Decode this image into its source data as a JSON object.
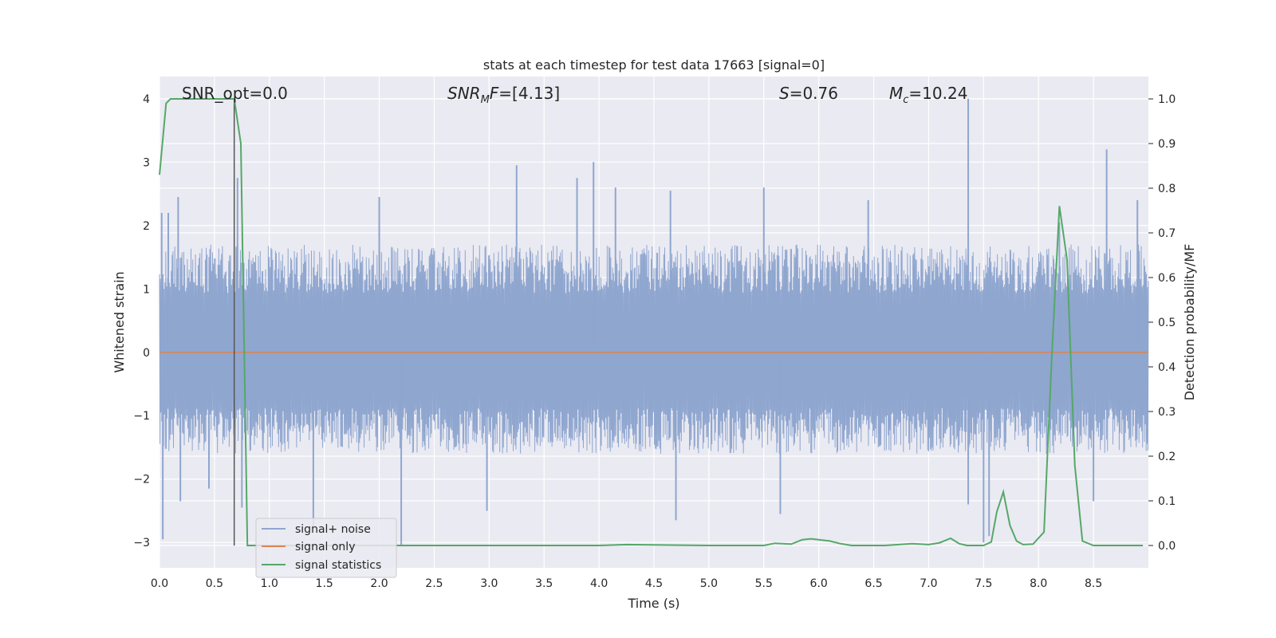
{
  "chart_data": {
    "type": "line",
    "title": "stats at each timestep for test data 17663 [signal=0]",
    "xlabel": "Time (s)",
    "ylabel": "Whitened strain",
    "ylabel_right": "Detection probability/MF",
    "xlim": [
      0,
      9.0
    ],
    "ylim": [
      -3.4,
      4.35
    ],
    "ylim_right": [
      -0.05,
      1.05
    ],
    "x_ticks": [
      "0.0",
      "0.5",
      "1.0",
      "1.5",
      "2.0",
      "2.5",
      "3.0",
      "3.5",
      "4.0",
      "4.5",
      "5.0",
      "5.5",
      "6.0",
      "6.5",
      "7.0",
      "7.5",
      "8.0",
      "8.5"
    ],
    "x_tick_values": [
      0,
      0.5,
      1,
      1.5,
      2,
      2.5,
      3,
      3.5,
      4,
      4.5,
      5,
      5.5,
      6,
      6.5,
      7,
      7.5,
      8,
      8.5
    ],
    "y_ticks": [
      "4",
      "3",
      "2",
      "1",
      "0",
      "−1",
      "−2",
      "−3"
    ],
    "y_tick_values": [
      4,
      3,
      2,
      1,
      0,
      -1,
      -2,
      -3
    ],
    "y_right_ticks": [
      "1.0",
      "0.9",
      "0.8",
      "0.7",
      "0.6",
      "0.5",
      "0.4",
      "0.3",
      "0.2",
      "0.1",
      "0.0"
    ],
    "y_right_tick_values": [
      1.0,
      0.9,
      0.8,
      0.7,
      0.6,
      0.5,
      0.4,
      0.3,
      0.2,
      0.1,
      0.0
    ],
    "annotations": {
      "snr_opt": "SNR_opt=0.0",
      "snr_mf_main": "SNR",
      "snr_mf_sub": "M",
      "snr_mf_italic_tail": "F",
      "snr_mf_value": "=[4.13]",
      "s_label": "S",
      "s_value": "=0.76",
      "mc_label": "M",
      "mc_sub": "c",
      "mc_value": "=10.24"
    },
    "marker_line": {
      "x": 0.68,
      "y": [
        -3.05,
        4.0
      ]
    },
    "legend": {
      "placement": "lower-left",
      "entries": [
        "signal+ noise",
        "signal only",
        "signal statistics"
      ]
    },
    "series": [
      {
        "name": "signal+ noise",
        "color": "#8fa6cf",
        "axis": "left",
        "kind": "noise",
        "envelope": {
          "typical_max": 1.7,
          "typical_min": -1.6
        },
        "peaks": [
          {
            "x": 0.02,
            "y": 2.2
          },
          {
            "x": 0.03,
            "y": -2.95
          },
          {
            "x": 0.08,
            "y": 2.2
          },
          {
            "x": 0.17,
            "y": 2.45
          },
          {
            "x": 0.19,
            "y": -2.35
          },
          {
            "x": 0.45,
            "y": -2.15
          },
          {
            "x": 0.71,
            "y": 2.75
          },
          {
            "x": 0.75,
            "y": -2.45
          },
          {
            "x": 1.4,
            "y": -2.75
          },
          {
            "x": 2.0,
            "y": 2.45
          },
          {
            "x": 2.2,
            "y": -3.05
          },
          {
            "x": 3.25,
            "y": 2.95
          },
          {
            "x": 2.98,
            "y": -2.5
          },
          {
            "x": 3.8,
            "y": 2.75
          },
          {
            "x": 3.95,
            "y": 3.0
          },
          {
            "x": 4.15,
            "y": 2.6
          },
          {
            "x": 4.65,
            "y": 2.55
          },
          {
            "x": 4.7,
            "y": -2.65
          },
          {
            "x": 5.5,
            "y": 2.6
          },
          {
            "x": 5.65,
            "y": -2.55
          },
          {
            "x": 6.45,
            "y": 2.4
          },
          {
            "x": 7.36,
            "y": 4.0
          },
          {
            "x": 7.36,
            "y": -2.4
          },
          {
            "x": 7.5,
            "y": -3.0
          },
          {
            "x": 7.55,
            "y": -2.9
          },
          {
            "x": 8.19,
            "y": 2.05
          },
          {
            "x": 8.5,
            "y": -2.35
          },
          {
            "x": 8.62,
            "y": 3.2
          },
          {
            "x": 8.9,
            "y": 2.4
          }
        ]
      },
      {
        "name": "signal only",
        "color": "#dd8452",
        "axis": "left",
        "x": [
          0,
          9.0
        ],
        "y": [
          0,
          0
        ]
      },
      {
        "name": "signal statistics",
        "color": "#55a868",
        "axis": "right",
        "x": [
          0.0,
          0.06,
          0.1,
          0.2,
          0.4,
          0.6,
          0.68,
          0.74,
          0.8,
          0.85,
          1.0,
          2.0,
          3.0,
          4.0,
          4.25,
          5.0,
          5.5,
          5.6,
          5.75,
          5.85,
          5.93,
          6.1,
          6.2,
          6.3,
          6.6,
          6.85,
          7.0,
          7.1,
          7.2,
          7.28,
          7.35,
          7.5,
          7.57,
          7.62,
          7.68,
          7.74,
          7.8,
          7.86,
          7.95,
          8.05,
          8.12,
          8.19,
          8.26,
          8.33,
          8.4,
          8.5,
          8.7,
          8.95
        ],
        "y": [
          0.83,
          0.99,
          1.0,
          1.0,
          1.0,
          1.0,
          1.0,
          0.9,
          0.0,
          0.0,
          0.0,
          0.0,
          0.0,
          0.0,
          0.002,
          0.0,
          0.0,
          0.005,
          0.003,
          0.013,
          0.015,
          0.01,
          0.004,
          0.0,
          0.0,
          0.004,
          0.002,
          0.006,
          0.016,
          0.004,
          0.0,
          0.0,
          0.008,
          0.075,
          0.12,
          0.045,
          0.01,
          0.002,
          0.003,
          0.03,
          0.42,
          0.76,
          0.64,
          0.18,
          0.01,
          0.0,
          0.0,
          0.0
        ]
      }
    ]
  }
}
